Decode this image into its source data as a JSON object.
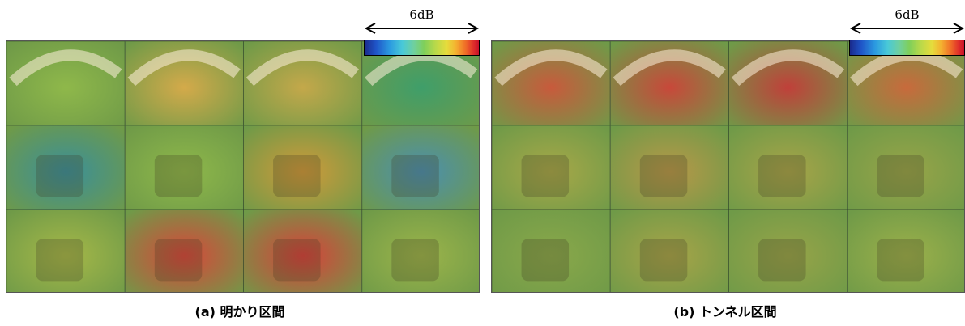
{
  "panels": [
    {
      "id": "a",
      "caption": "(a) 明かり区間",
      "scale_label": "6dB",
      "tile_colors": [
        [
          "#8fb84a",
          "#d4aa4a",
          "#c4a84a",
          "#3f9e6a"
        ],
        [
          "#3a8f9a",
          "#8fb84a",
          "#d09a3a",
          "#4a8fb0"
        ],
        [
          "#a6b848",
          "#d8463a",
          "#d8403a",
          "#9cb44a"
        ]
      ]
    },
    {
      "id": "b",
      "caption": "(b) トンネル区間",
      "scale_label": "6dB",
      "tile_colors": [
        [
          "#c85a3c",
          "#c8483a",
          "#c0403a",
          "#c86a3c"
        ],
        [
          "#a8a848",
          "#b89848",
          "#a8a448",
          "#98a448"
        ],
        [
          "#8aa84a",
          "#a8a448",
          "#98a448",
          "#9cb04a"
        ]
      ]
    }
  ],
  "colors": {
    "colorbar_low": "#1a2a8c",
    "colorbar_mid": "#7fcf5a",
    "colorbar_high": "#c8102a"
  }
}
